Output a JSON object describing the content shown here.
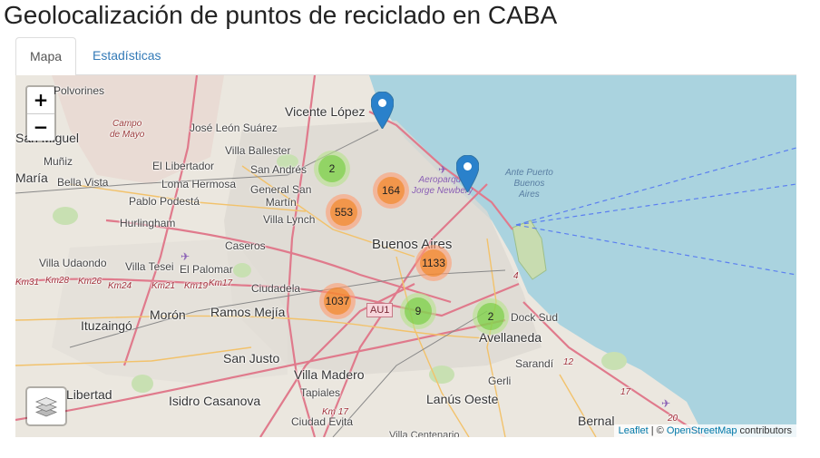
{
  "page": {
    "title": "Geolocalización de puntos de reciclado en CABA"
  },
  "tabs": [
    {
      "label": "Mapa",
      "active": true
    },
    {
      "label": "Estadísticas",
      "active": false
    }
  ],
  "map": {
    "zoom_in": "+",
    "zoom_out": "−",
    "layers_control_icon": "layers-icon",
    "attribution": {
      "leaflet": "Leaflet",
      "separator": " | © ",
      "osm": "OpenStreetMap",
      "suffix": " contributors"
    },
    "clusters": [
      {
        "count": "2",
        "level": "green"
      },
      {
        "count": "164",
        "level": "orange"
      },
      {
        "count": "553",
        "level": "orange"
      },
      {
        "count": "1133",
        "level": "orange"
      },
      {
        "count": "1037",
        "level": "orange"
      },
      {
        "count": "9",
        "level": "green"
      },
      {
        "count": "2",
        "level": "green"
      }
    ],
    "markers": [
      {
        "icon": "map-pin-icon",
        "color": "#2a81cb"
      },
      {
        "icon": "map-pin-icon",
        "color": "#2a81cb"
      }
    ],
    "places": {
      "polvorines": "Polvorines",
      "vicente_lopez": "Vicente López",
      "campo_de_mayo": "Campo\nde Mayo",
      "jose_leon_suarez": "José León Suárez",
      "san_miguel": "San Miguel",
      "villa_ballester": "Villa Ballester",
      "muniz": "Muñiz",
      "el_libertador": "El Libertador",
      "san_andres": "San Andrés",
      "maria": "María",
      "bella_vista": "Bella Vista",
      "loma_hermosa": "Loma Hermosa",
      "general_san_martin": "General San\nMartín",
      "aeroparque": "Aeroparque\nJorge Newbery",
      "ante_puerto": "Ante Puerto\nBuenos\nAires",
      "pablo_podesta": "Pablo Podestá",
      "villa_lynch": "Villa Lynch",
      "hurlingham": "Hurlingham",
      "caseros": "Caseros",
      "buenos_aires": "Buenos Aires",
      "villa_udaondo": "Villa Udaondo",
      "villa_tesei": "Villa Tesei",
      "el_palomar": "El Palomar",
      "ciudadela": "Ciudadela",
      "moron": "Morón",
      "ramos_mejia": "Ramos Mejía",
      "ituzaingo": "Ituzaingó",
      "dock_sud": "Dock Sud",
      "avellaneda": "Avellaneda",
      "san_justo": "San Justo",
      "sarandi": "Sarandí",
      "villa_madero": "Villa Madero",
      "gerli": "Gerli",
      "libertad": "Libertad",
      "tapiales": "Tapiales",
      "isidro_casanova": "Isidro Casanova",
      "lanus_oeste": "Lanús Oeste",
      "ciudad_evita": "Ciudad Evita",
      "bernal": "Bernal",
      "villa_centenario": "Villa Centenario",
      "road_au1": "AU1",
      "km31": "Km31",
      "km28": "Km28",
      "km26": "Km26",
      "km24": "Km24",
      "km21": "Km21",
      "km19": "Km19",
      "km17": "Km17",
      "km17b": "Km 17",
      "r4": "4",
      "r12": "12",
      "r17": "17",
      "r20": "20"
    }
  }
}
